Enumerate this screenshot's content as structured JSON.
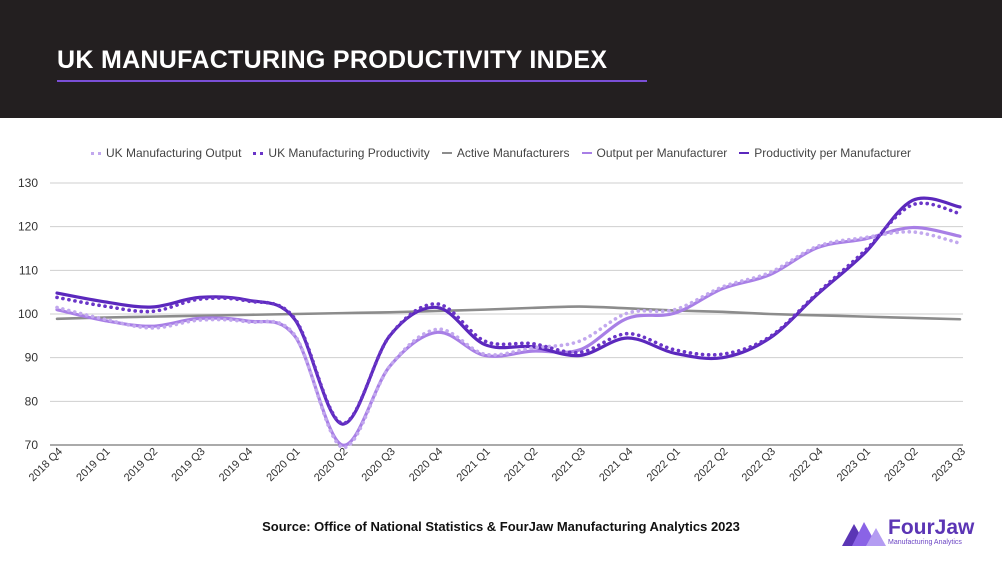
{
  "header": {
    "title": "UK MANUFACTURING PRODUCTIVITY INDEX"
  },
  "footer": {
    "source": "Source: Office of National Statistics & FourJaw Manufacturing Analytics 2023"
  },
  "logo": {
    "name": "FourJaw",
    "tagline": "Manufacturing Analytics",
    "icon": "fourjaw-logo-icon",
    "colors": [
      "#5b35b5",
      "#8a63e6",
      "#b49cf2"
    ]
  },
  "chart_data": {
    "type": "line",
    "categories": [
      "2018 Q4",
      "2019 Q1",
      "2019 Q2",
      "2019 Q3",
      "2019 Q4",
      "2020 Q1",
      "2020 Q2",
      "2020 Q3",
      "2020 Q4",
      "2021 Q1",
      "2021 Q2",
      "2021 Q3",
      "2021 Q4",
      "2022 Q1",
      "2022 Q2",
      "2022 Q3",
      "2022 Q4",
      "2023 Q1",
      "2023 Q2",
      "2023 Q3"
    ],
    "ylim": [
      70,
      130
    ],
    "yticks": [
      70,
      80,
      90,
      100,
      110,
      120,
      130
    ],
    "grid": true,
    "legend_position": "top",
    "series": [
      {
        "name": "UK Manufacturing Output",
        "style": "dotted",
        "color": "#c2a8ee",
        "values": [
          101.5,
          98.8,
          96.8,
          98.6,
          98.2,
          95.2,
          69.5,
          88.0,
          96.5,
          90.8,
          92.2,
          93.8,
          100.2,
          101.0,
          106.2,
          109.5,
          115.5,
          117.5,
          118.8,
          116.2
        ]
      },
      {
        "name": "UK Manufacturing Productivity",
        "style": "dotted",
        "color": "#6a35c8",
        "values": [
          103.8,
          101.8,
          100.6,
          103.4,
          103.0,
          99.0,
          75.0,
          95.0,
          102.3,
          93.8,
          93.2,
          91.2,
          95.5,
          91.8,
          90.8,
          94.8,
          104.8,
          114.5,
          125.0,
          123.0
        ]
      },
      {
        "name": "Active Manufacturers",
        "style": "solid",
        "color": "#8c8c8c",
        "values": [
          98.9,
          99.2,
          99.4,
          99.6,
          99.8,
          100.0,
          100.2,
          100.4,
          100.7,
          101.0,
          101.4,
          101.7,
          101.3,
          100.8,
          100.5,
          100.0,
          99.7,
          99.4,
          99.1,
          98.8
        ]
      },
      {
        "name": "Output per Manufacturer",
        "style": "solid",
        "color": "#a87fe6",
        "values": [
          101.0,
          98.5,
          97.2,
          99.0,
          98.4,
          95.0,
          70.0,
          88.0,
          95.8,
          90.5,
          91.5,
          91.8,
          99.0,
          100.2,
          105.8,
          109.0,
          115.2,
          117.2,
          119.8,
          117.8
        ]
      },
      {
        "name": "Productivity per Manufacturer",
        "style": "solid",
        "color": "#5b28bd",
        "values": [
          104.8,
          102.8,
          101.6,
          103.8,
          103.2,
          98.8,
          74.8,
          95.0,
          101.5,
          93.0,
          92.5,
          90.5,
          94.5,
          91.0,
          90.0,
          94.5,
          104.5,
          114.0,
          126.0,
          124.5
        ]
      }
    ]
  }
}
